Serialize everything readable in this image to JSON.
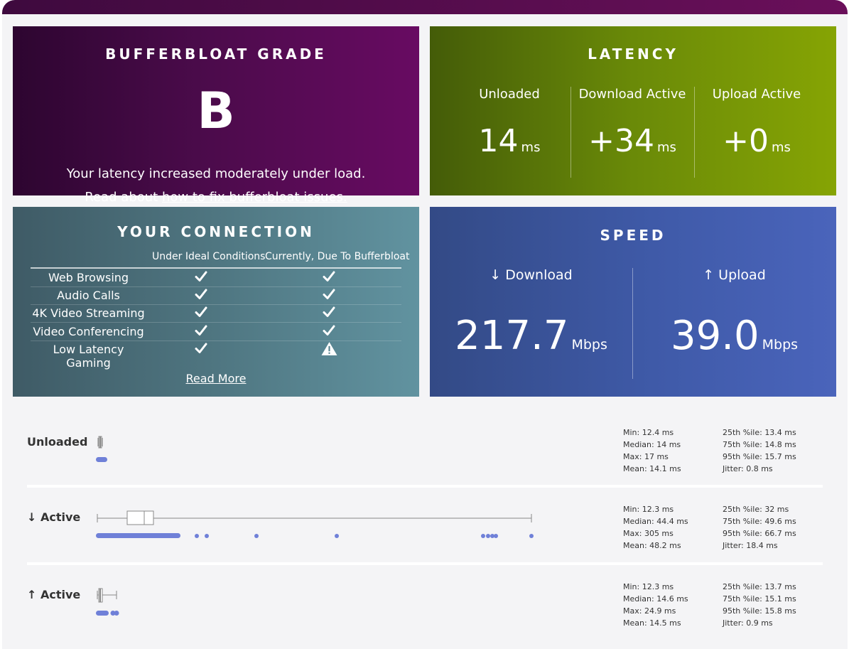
{
  "grade": {
    "title": "BUFFERBLOAT GRADE",
    "letter": "B",
    "description": "Your latency increased moderately under load.",
    "read_prefix": "Read about ",
    "read_link": "how to fix bufferbloat issues."
  },
  "latency": {
    "title": "LATENCY",
    "unit": "ms",
    "columns": [
      {
        "label": "Unloaded",
        "value": "14"
      },
      {
        "label": "Download Active",
        "value": "+34"
      },
      {
        "label": "Upload Active",
        "value": "+0"
      }
    ]
  },
  "connection": {
    "title": "YOUR CONNECTION",
    "col1_header": "Under Ideal Conditions",
    "col2_header": "Currently, Due To Bufferbloat",
    "rows": [
      {
        "name": "Web Browsing",
        "ideal": "check",
        "current": "check"
      },
      {
        "name": "Audio Calls",
        "ideal": "check",
        "current": "check"
      },
      {
        "name": "4K Video Streaming",
        "ideal": "check",
        "current": "check"
      },
      {
        "name": "Video Conferencing",
        "ideal": "check",
        "current": "check"
      },
      {
        "name": "Low Latency Gaming",
        "ideal": "check",
        "current": "warning"
      }
    ],
    "read_more": "Read More"
  },
  "speed": {
    "title": "SPEED",
    "download_label": "↓ Download",
    "download_value": "217.7",
    "upload_label": "↑ Upload",
    "upload_value": "39.0",
    "unit": "Mbps"
  },
  "stats": [
    {
      "label": "Unloaded",
      "min": "Min: 12.4 ms",
      "median": "Median: 14 ms",
      "max": "Max: 17 ms",
      "mean": "Mean: 14.1 ms",
      "p25": "25th %ile: 13.4 ms",
      "p75": "75th %ile: 14.8 ms",
      "p95": "95th %ile: 15.7 ms",
      "jitter": "Jitter: 0.8 ms"
    },
    {
      "label": "↓ Active",
      "min": "Min: 12.3 ms",
      "median": "Median: 44.4 ms",
      "max": "Max: 305 ms",
      "mean": "Mean: 48.2 ms",
      "p25": "25th %ile: 32 ms",
      "p75": "75th %ile: 49.6 ms",
      "p95": "95th %ile: 66.7 ms",
      "jitter": "Jitter: 18.4 ms"
    },
    {
      "label": "↑ Active",
      "min": "Min: 12.3 ms",
      "median": "Median: 14.6 ms",
      "max": "Max: 24.9 ms",
      "mean": "Mean: 14.5 ms",
      "p25": "25th %ile: 13.7 ms",
      "p75": "75th %ile: 15.1 ms",
      "p95": "95th %ile: 15.8 ms",
      "jitter": "Jitter: 0.9 ms"
    }
  ],
  "colors": {
    "dot": "#6f80d8",
    "box": "#888888"
  }
}
